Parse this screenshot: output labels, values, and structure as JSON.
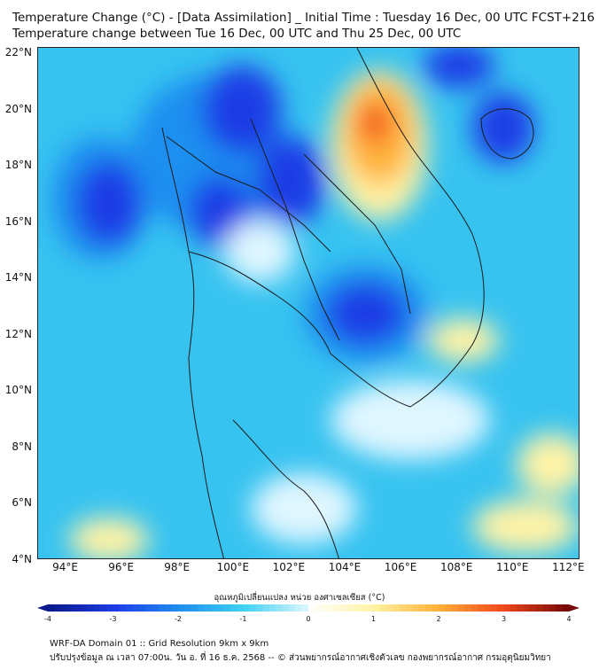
{
  "title_line1": "Temperature Change (°C) - [Data Assimilation] _ Initial Time : Tuesday 16 Dec, 00 UTC FCST+216",
  "title_line2": "Temperature change between Tue 16 Dec, 00 UTC and Thu 25 Dec, 00 UTC",
  "lat_labels": [
    "22°N",
    "20°N",
    "18°N",
    "16°N",
    "14°N",
    "12°N",
    "10°N",
    "8°N",
    "6°N",
    "4°N"
  ],
  "lon_labels": [
    "94°E",
    "96°E",
    "98°E",
    "100°E",
    "102°E",
    "104°E",
    "106°E",
    "108°E",
    "110°E",
    "112°E"
  ],
  "colorbar": {
    "label": "อุณหภูมิเปลี่ยนแปลง หน่วย องศาเซลเซียส (°C)",
    "ticks": [
      "-4",
      "-3",
      "-2",
      "-1",
      "0",
      "1",
      "2",
      "3",
      "4"
    ],
    "range": [
      -4,
      4
    ],
    "colors_neg": [
      "#0a1a8c",
      "#1e3ce6",
      "#1f8ff0",
      "#3fd2f2",
      "#dff6ff"
    ],
    "colors_pos": [
      "#ffffff",
      "#fff3a6",
      "#ffb33a",
      "#f24a1a",
      "#7a0a0a"
    ]
  },
  "map": {
    "lat_range": [
      4,
      22.2
    ],
    "lon_range": [
      93,
      112.4
    ],
    "field_background": "#37c3f0",
    "features": [
      {
        "name": "cold-core-myanmar-west",
        "lon": 95.0,
        "lat": 17.2,
        "value": -3.0
      },
      {
        "name": "cold-core-north-thailand",
        "lon": 100.4,
        "lat": 19.5,
        "value": -2.8
      },
      {
        "name": "cold-core-laos",
        "lon": 101.6,
        "lat": 17.6,
        "value": -2.8
      },
      {
        "name": "cold-core-cambodia",
        "lon": 104.2,
        "lat": 12.9,
        "value": -2.9
      },
      {
        "name": "cold-core-hainan",
        "lon": 110.0,
        "lat": 19.4,
        "value": -2.6
      },
      {
        "name": "warm-core-vietnam-north",
        "lon": 105.2,
        "lat": 19.6,
        "value": 2.5
      },
      {
        "name": "warm-spot-south-vietnam",
        "lon": 107.8,
        "lat": 11.8,
        "value": 0.6
      },
      {
        "name": "warm-spot-southwest",
        "lon": 96.0,
        "lat": 4.5,
        "value": 0.6
      },
      {
        "name": "warm-spot-southeast",
        "lon": 111.5,
        "lat": 5.5,
        "value": 0.5
      }
    ]
  },
  "footer_line1": "WRF-DA Domain 01 :: Grid Resolution 9km x 9km",
  "footer_line2": "ปรับปรุงข้อมูล ณ เวลา 07:00น. วัน อ. ที่ 16 ธ.ค. 2568 -- © ส่วนพยากรณ์อากาศเชิงตัวเลข กองพยากรณ์อากาศ กรมอุตุนิยมวิทยา"
}
